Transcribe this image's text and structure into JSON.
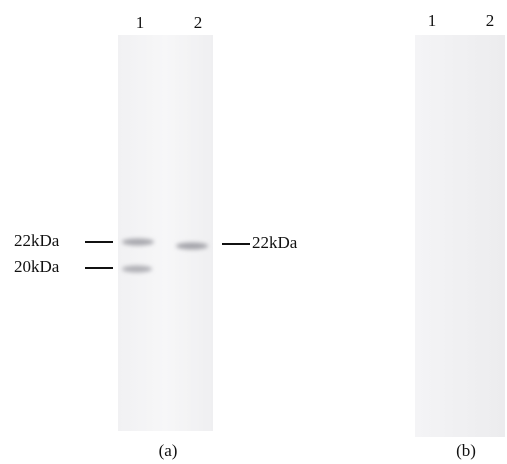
{
  "panels": [
    {
      "lanes": [
        "1",
        "2"
      ],
      "caption": "(a)",
      "markers_left": [
        "22kDa",
        "20kDa"
      ],
      "markers_right": [
        "22kDa"
      ]
    },
    {
      "lanes": [
        "1",
        "2"
      ],
      "caption": "(b)"
    }
  ]
}
